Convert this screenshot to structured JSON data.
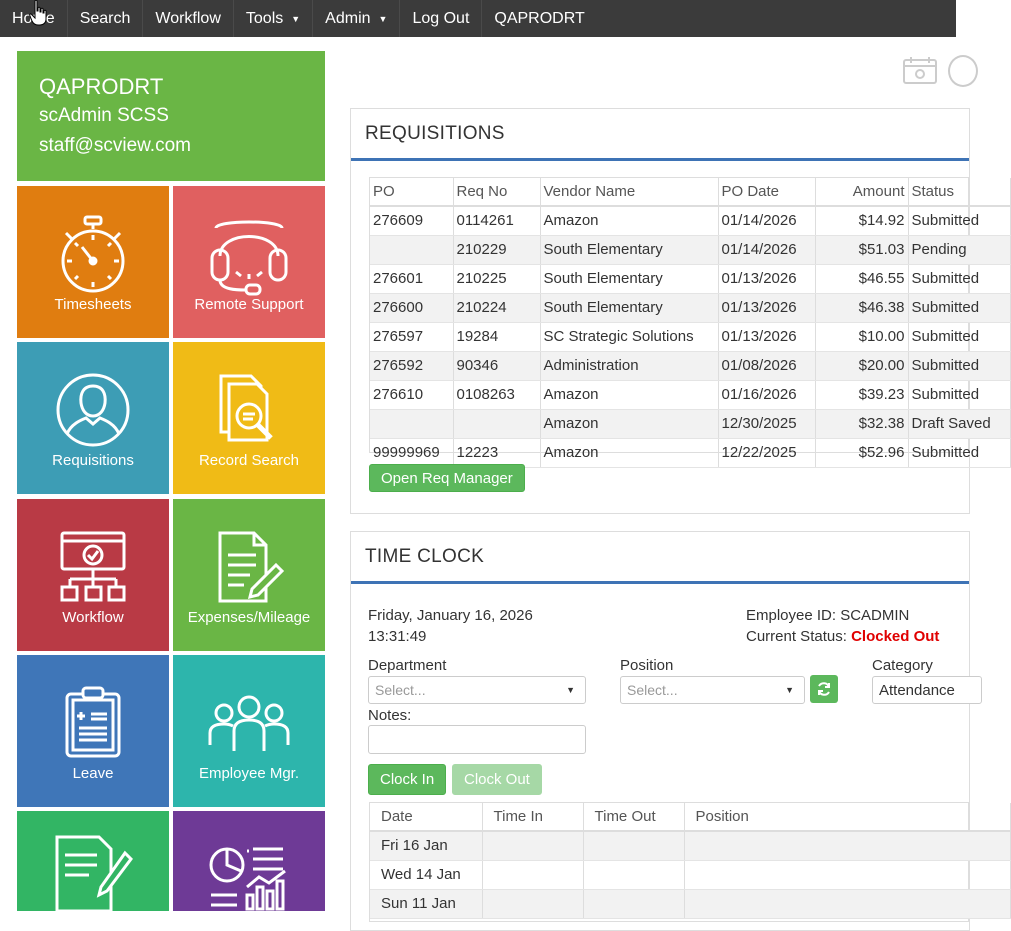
{
  "nav": {
    "items": [
      {
        "label": "Home"
      },
      {
        "label": "Search"
      },
      {
        "label": "Workflow"
      },
      {
        "label": "Tools",
        "dropdown": true
      },
      {
        "label": "Admin",
        "dropdown": true
      },
      {
        "label": "Log Out"
      }
    ],
    "brand": "QAPRODRT"
  },
  "user": {
    "org": "QAPRODRT",
    "name": "scAdmin SCSS",
    "email": "staff@scview.com"
  },
  "tiles": [
    {
      "label": "Timesheets",
      "icon": "stopwatch-icon",
      "color": "#e07d10"
    },
    {
      "label": "Remote Support",
      "icon": "headset-icon",
      "color": "#e06060"
    },
    {
      "label": "Requisitions",
      "icon": "person-circle-icon",
      "color": "#3d9db5"
    },
    {
      "label": "Record Search",
      "icon": "document-search-icon",
      "color": "#f0bb16"
    },
    {
      "label": "Workflow",
      "icon": "workflow-chart-icon",
      "color": "#b93a45"
    },
    {
      "label": "Expenses/Mileage",
      "icon": "document-pencil-icon",
      "color": "#6ab645"
    },
    {
      "label": "Leave",
      "icon": "clipboard-icon",
      "color": "#3f76b8"
    },
    {
      "label": "Employee Mgr.",
      "icon": "group-icon",
      "color": "#2db5ac"
    },
    {
      "label": "",
      "icon": "signature-document-icon",
      "color": "#32b564"
    },
    {
      "label": "",
      "icon": "report-chart-icon",
      "color": "#6e3a96"
    }
  ],
  "requisitions": {
    "title": "REQUISITIONS",
    "columns": [
      "PO",
      "Req No",
      "Vendor Name",
      "PO Date",
      "Amount",
      "Status"
    ],
    "rows": [
      [
        "276609",
        "0114261",
        "Amazon",
        "01/14/2026",
        "$14.92",
        "Submitted"
      ],
      [
        "",
        "210229",
        "South Elementary",
        "01/14/2026",
        "$51.03",
        "Pending"
      ],
      [
        "276601",
        "210225",
        "South Elementary",
        "01/13/2026",
        "$46.55",
        "Submitted"
      ],
      [
        "276600",
        "210224",
        "South Elementary",
        "01/13/2026",
        "$46.38",
        "Submitted"
      ],
      [
        "276597",
        "19284",
        "SC Strategic Solutions",
        "01/13/2026",
        "$10.00",
        "Submitted"
      ],
      [
        "276592",
        "90346",
        "Administration",
        "01/08/2026",
        "$20.00",
        "Submitted"
      ],
      [
        "276610",
        "0108263",
        "Amazon",
        "01/16/2026",
        "$39.23",
        "Submitted"
      ],
      [
        "",
        "",
        "Amazon",
        "12/30/2025",
        "$32.38",
        "Draft Saved"
      ],
      [
        "99999969",
        "12223",
        "Amazon",
        "12/22/2025",
        "$52.96",
        "Submitted"
      ]
    ],
    "open_button": "Open Req Manager"
  },
  "timeclock": {
    "title": "TIME CLOCK",
    "date": "Friday, January 16, 2026",
    "time": "13:31:49",
    "employee_id_label": "Employee ID:",
    "employee_id": "SCADMIN",
    "status_label": "Current Status:",
    "status": "Clocked Out",
    "status_color": "#e00000",
    "department_label": "Department",
    "department_placeholder": "Select...",
    "position_label": "Position",
    "position_placeholder": "Select...",
    "category_label": "Category",
    "category_value": "Attendance",
    "notes_label": "Notes:",
    "clock_in": "Clock In",
    "clock_out": "Clock Out",
    "columns": [
      "Date",
      "Time In",
      "Time Out",
      "Position"
    ],
    "rows": [
      [
        "Fri 16 Jan",
        "",
        "",
        ""
      ],
      [
        "Wed 14 Jan",
        "",
        "",
        ""
      ],
      [
        "Sun 11 Jan",
        "",
        "",
        ""
      ]
    ]
  }
}
